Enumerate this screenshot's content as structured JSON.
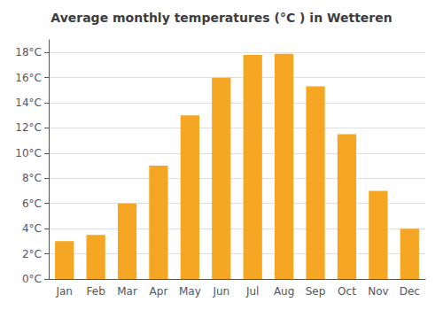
{
  "chart_data": {
    "type": "bar",
    "title": "Average monthly temperatures (°C ) in Wetteren",
    "categories": [
      "Jan",
      "Feb",
      "Mar",
      "Apr",
      "May",
      "Jun",
      "Jul",
      "Aug",
      "Sep",
      "Oct",
      "Nov",
      "Dec"
    ],
    "values": [
      3.0,
      3.5,
      6.0,
      9.0,
      13.0,
      16.0,
      17.8,
      17.9,
      15.3,
      11.5,
      7.0,
      4.0
    ],
    "color": "#F5A623",
    "ylim": [
      0,
      19
    ],
    "yticks": [
      {
        "value": 0,
        "label": "0°C"
      },
      {
        "value": 2,
        "label": "2°C"
      },
      {
        "value": 4,
        "label": "4°C"
      },
      {
        "value": 6,
        "label": "6°C"
      },
      {
        "value": 8,
        "label": "8°C"
      },
      {
        "value": 10,
        "label": "10°C"
      },
      {
        "value": 12,
        "label": "12°C"
      },
      {
        "value": 14,
        "label": "14°C"
      },
      {
        "value": 16,
        "label": "16°C"
      },
      {
        "value": 18,
        "label": "18°C"
      }
    ],
    "grid": true
  }
}
